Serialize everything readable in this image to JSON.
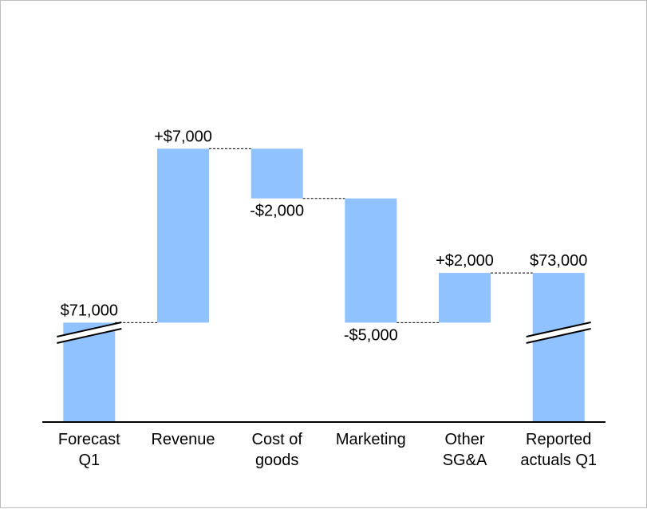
{
  "chart_data": {
    "type": "bar",
    "subtype": "waterfall",
    "title": "",
    "xlabel": "",
    "ylabel": "",
    "categories": [
      [
        "Forecast",
        "Q1"
      ],
      [
        "Revenue"
      ],
      [
        "Cost of",
        "goods"
      ],
      [
        "Marketing"
      ],
      [
        "Other",
        "SG&A"
      ],
      [
        "Reported",
        "actuals Q1"
      ]
    ],
    "values": [
      71000,
      7000,
      -2000,
      -5000,
      2000,
      73000
    ],
    "kinds": [
      "total",
      "delta",
      "delta",
      "delta",
      "delta",
      "total"
    ],
    "data_labels": [
      "$71,000",
      "+$7,000",
      "-$2,000",
      "-$5,000",
      "+$2,000",
      "$73,000"
    ],
    "axis_break_on_totals": true,
    "ylim": [
      67000,
      79000
    ],
    "grid": false,
    "legend": "none",
    "colors": {
      "bar": "#90C2FF",
      "axis": "#000000",
      "connector": "#000000"
    }
  }
}
